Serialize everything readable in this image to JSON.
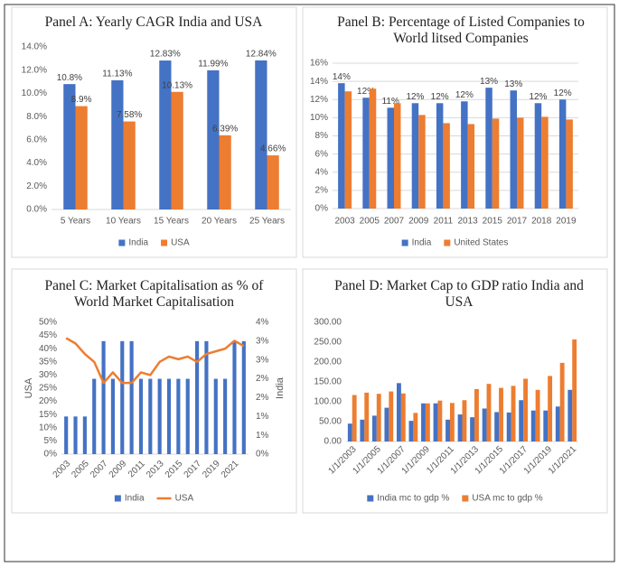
{
  "chart_data": [
    {
      "type": "bar",
      "title": "Panel A: Yearly CAGR India and USA",
      "categories": [
        "5 Years",
        "10 Years",
        "15 Years",
        "20 Years",
        "25 Years"
      ],
      "series": [
        {
          "name": "India",
          "color": "#4472c4",
          "values": [
            10.8,
            11.13,
            12.83,
            11.99,
            12.84
          ],
          "value_labels": [
            "10.8%",
            "11.13%",
            "12.83%",
            "11.99%",
            "12.84%"
          ]
        },
        {
          "name": "USA",
          "color": "#ed7d31",
          "values": [
            8.9,
            7.58,
            10.13,
            6.39,
            4.66
          ],
          "value_labels": [
            "8.9%",
            "7.58%",
            "10.13%",
            "6.39%",
            "4.66%"
          ]
        }
      ],
      "ylim": [
        0,
        14
      ],
      "yticks": [
        {
          "value": 0,
          "label": "0.0%"
        },
        {
          "value": 2,
          "label": "2.0%"
        },
        {
          "value": 4,
          "label": "4.0%"
        },
        {
          "value": 6,
          "label": "6.0%"
        },
        {
          "value": 8,
          "label": "8.0%"
        },
        {
          "value": 10,
          "label": "10.0%"
        },
        {
          "value": 12,
          "label": "12.0%"
        },
        {
          "value": 14,
          "label": "14.0%"
        }
      ],
      "grid": false,
      "legend": "bottom"
    },
    {
      "type": "bar",
      "title": "Panel B: Percentage of Listed Companies to World litsed Companies",
      "categories": [
        "2003",
        "2005",
        "2007",
        "2009",
        "2011",
        "2013",
        "2015",
        "2017",
        "2018",
        "2019"
      ],
      "series": [
        {
          "name": "India",
          "color": "#4472c4",
          "values": [
            13.8,
            12.2,
            11.1,
            11.6,
            11.6,
            11.8,
            13.3,
            13.0,
            11.6,
            12.0
          ],
          "value_labels": [
            "14%",
            "12%",
            "11%",
            "12%",
            "12%",
            "12%",
            "13%",
            "13%",
            "12%",
            "12%"
          ]
        },
        {
          "name": "United States",
          "color": "#ed7d31",
          "values": [
            12.9,
            13.2,
            11.6,
            10.3,
            9.4,
            9.3,
            9.9,
            10.0,
            10.1,
            9.8
          ]
        }
      ],
      "ylim": [
        0,
        16
      ],
      "yticks": [
        {
          "value": 0,
          "label": "0%"
        },
        {
          "value": 2,
          "label": "2%"
        },
        {
          "value": 4,
          "label": "4%"
        },
        {
          "value": 6,
          "label": "6%"
        },
        {
          "value": 8,
          "label": "8%"
        },
        {
          "value": 10,
          "label": "10%"
        },
        {
          "value": 12,
          "label": "12%"
        },
        {
          "value": 14,
          "label": "14%"
        },
        {
          "value": 16,
          "label": "16%"
        }
      ],
      "grid": true,
      "legend": "bottom"
    },
    {
      "type": "combo",
      "title": "Panel C: Market Capitalisation as % of World Market Capitalisation",
      "categories": [
        "2003",
        null,
        "2005",
        null,
        "2007",
        null,
        "2009",
        null,
        "2011",
        null,
        "2013",
        null,
        "2015",
        null,
        "2017",
        null,
        "2019",
        null,
        "2021",
        null
      ],
      "series": [
        {
          "name": "India",
          "type": "bar",
          "axis": "y2",
          "color": "#4472c4",
          "values": [
            1,
            1,
            1,
            2,
            3,
            2,
            3,
            3,
            2,
            2,
            2,
            2,
            2,
            2,
            3,
            3,
            2,
            2,
            3,
            3
          ]
        },
        {
          "name": "USA",
          "type": "line",
          "color": "#ed7d31",
          "values": [
            44,
            42,
            38,
            35,
            27,
            31,
            27,
            27,
            31,
            30,
            35,
            37,
            36,
            37,
            35,
            38,
            39,
            40,
            43,
            41
          ]
        }
      ],
      "ylabel": "USA",
      "y2label": "India",
      "ylim": [
        0,
        50
      ],
      "yticks": [
        {
          "value": 0,
          "label": "0%"
        },
        {
          "value": 5,
          "label": "5%"
        },
        {
          "value": 10,
          "label": "10%"
        },
        {
          "value": 15,
          "label": "15%"
        },
        {
          "value": 20,
          "label": "20%"
        },
        {
          "value": 25,
          "label": "25%"
        },
        {
          "value": 30,
          "label": "30%"
        },
        {
          "value": 35,
          "label": "35%"
        },
        {
          "value": 40,
          "label": "40%"
        },
        {
          "value": 45,
          "label": "45%"
        },
        {
          "value": 50,
          "label": "50%"
        }
      ],
      "y2lim": [
        0,
        3.5
      ],
      "y2ticks": [
        {
          "value": 0,
          "label": "0%"
        },
        {
          "value": 0.5,
          "label": "1%"
        },
        {
          "value": 1,
          "label": "1%"
        },
        {
          "value": 1.5,
          "label": "2%"
        },
        {
          "value": 2,
          "label": "2%"
        },
        {
          "value": 2.5,
          "label": "3%"
        },
        {
          "value": 3,
          "label": "3%"
        },
        {
          "value": 3.5,
          "label": "4%"
        }
      ],
      "grid": false,
      "legend": "bottom"
    },
    {
      "type": "bar",
      "title": "Panel D: Market Cap to GDP ratio India and USA",
      "categories": [
        "1/1/2003",
        null,
        "1/1/2005",
        null,
        "1/1/2007",
        null,
        "1/1/2009",
        null,
        "1/1/2011",
        null,
        "1/1/2013",
        null,
        "1/1/2015",
        null,
        "1/1/2017",
        null,
        "1/1/2019",
        null,
        "1/1/2021"
      ],
      "series": [
        {
          "name": "India mc to gdp %",
          "color": "#4472c4",
          "values": [
            45,
            55,
            65,
            85,
            147,
            52,
            96,
            96,
            55,
            68,
            61,
            83,
            74,
            73,
            104,
            78,
            78,
            88,
            130
          ]
        },
        {
          "name": "USA mc to gdp %",
          "color": "#ed7d31",
          "values": [
            117,
            123,
            120,
            126,
            121,
            72,
            96,
            103,
            97,
            104,
            132,
            145,
            135,
            140,
            158,
            130,
            165,
            198,
            257
          ]
        }
      ],
      "ylim": [
        0,
        300
      ],
      "yticks": [
        {
          "value": 0,
          "label": "0.00"
        },
        {
          "value": 50,
          "label": "50.00"
        },
        {
          "value": 100,
          "label": "100.00"
        },
        {
          "value": 150,
          "label": "150.00"
        },
        {
          "value": 200,
          "label": "200.00"
        },
        {
          "value": 250,
          "label": "250.00"
        },
        {
          "value": 300,
          "label": "300.00"
        }
      ],
      "grid": false,
      "legend": "bottom"
    }
  ]
}
